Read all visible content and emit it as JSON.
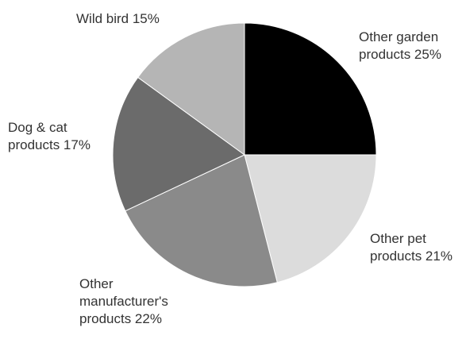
{
  "chart_data": {
    "type": "pie",
    "start_position": "top",
    "direction": "clockwise",
    "slices": [
      {
        "label_lines": [
          "Other garden",
          "products 25%"
        ],
        "value": 25,
        "color": "#000000"
      },
      {
        "label_lines": [
          "Other pet",
          "products 21%"
        ],
        "value": 21,
        "color": "#dcdcdc"
      },
      {
        "label_lines": [
          "Other",
          "manufacturer's",
          "products 22%"
        ],
        "value": 22,
        "color": "#8a8a8a"
      },
      {
        "label_lines": [
          "Dog & cat",
          "products 17%"
        ],
        "value": 17,
        "color": "#6b6b6b"
      },
      {
        "label_lines": [
          "Wild bird 15%"
        ],
        "value": 15,
        "color": "#b5b5b5"
      }
    ],
    "legend": "none",
    "grid": false
  }
}
